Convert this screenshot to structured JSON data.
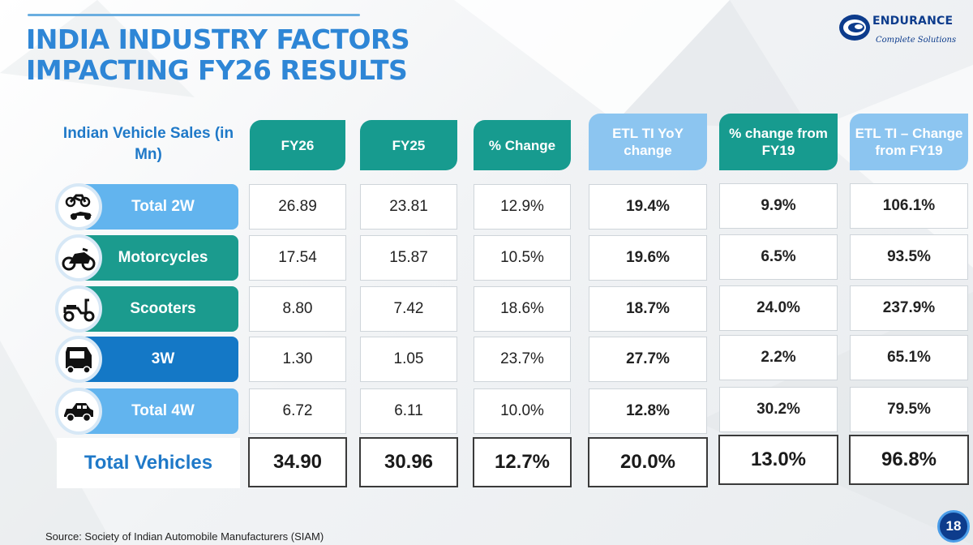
{
  "title": {
    "line1": "INDIA INDUSTRY FACTORS",
    "line2": "IMPACTING FY26 RESULTS"
  },
  "logo": {
    "name": "ENDURANCE",
    "tagline": "Complete Solutions"
  },
  "table": {
    "row_header": "Indian Vehicle Sales (in Mn)",
    "columns": [
      "FY26",
      "FY25",
      "% Change",
      "ETL TI YoY change",
      "% change from FY19",
      "ETL TI – Change from FY19"
    ],
    "rows": [
      {
        "label": "Total 2W",
        "icon": "two-wheeler-icon",
        "values": [
          "26.89",
          "23.81",
          "12.9%",
          "19.4%",
          "9.9%",
          "106.1%"
        ]
      },
      {
        "label": "Motorcycles",
        "icon": "motorcycle-icon",
        "values": [
          "17.54",
          "15.87",
          "10.5%",
          "19.6%",
          "6.5%",
          "93.5%"
        ]
      },
      {
        "label": "Scooters",
        "icon": "scooter-icon",
        "values": [
          "8.80",
          "7.42",
          "18.6%",
          "18.7%",
          "24.0%",
          "237.9%"
        ]
      },
      {
        "label": "3W",
        "icon": "auto-rickshaw-icon",
        "values": [
          "1.30",
          "1.05",
          "23.7%",
          "27.7%",
          "2.2%",
          "65.1%"
        ]
      },
      {
        "label": "Total 4W",
        "icon": "car-icon",
        "values": [
          "6.72",
          "6.11",
          "10.0%",
          "12.8%",
          "30.2%",
          "79.5%"
        ]
      }
    ],
    "total": {
      "label": "Total Vehicles",
      "values": [
        "34.90",
        "30.96",
        "12.7%",
        "20.0%",
        "13.0%",
        "96.8%"
      ]
    }
  },
  "source": "Source: Society of Indian Automobile Manufacturers (SIAM)",
  "page_number": "18",
  "colors": {
    "title_blue": "#2e86d6",
    "teal": "#179b8f",
    "light_blue": "#8cc5f0",
    "navy": "#0d3c8c"
  }
}
